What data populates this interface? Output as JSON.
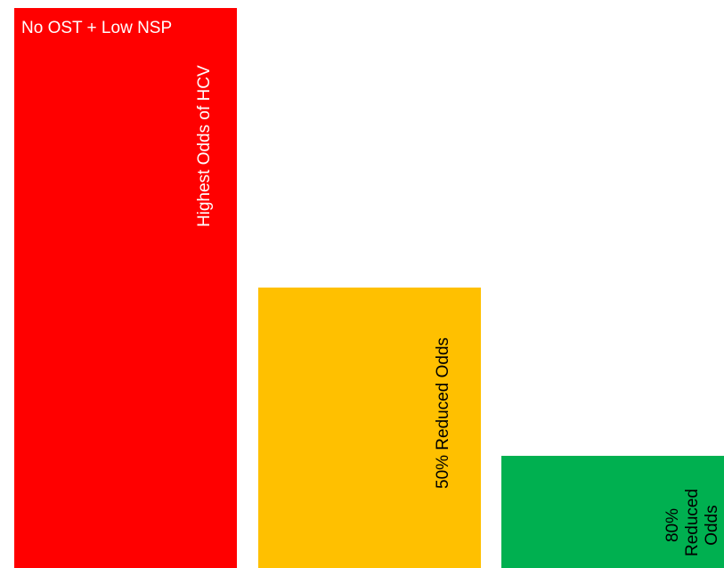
{
  "chart_data": {
    "type": "bar",
    "categories": [
      "No OST + Low NSP",
      "",
      ""
    ],
    "values": [
      100,
      50,
      20
    ],
    "annotations": [
      "Highest Odds of HCV",
      "50% Reduced Odds",
      "80% Reduced Odds"
    ],
    "colors": [
      "#ff0000",
      "#ffc000",
      "#00b050"
    ],
    "annotation_colors": [
      "#ffffff",
      "#000000",
      "#000000"
    ],
    "title": "",
    "xlabel": "",
    "ylabel": "",
    "ylim": [
      0,
      100
    ]
  }
}
